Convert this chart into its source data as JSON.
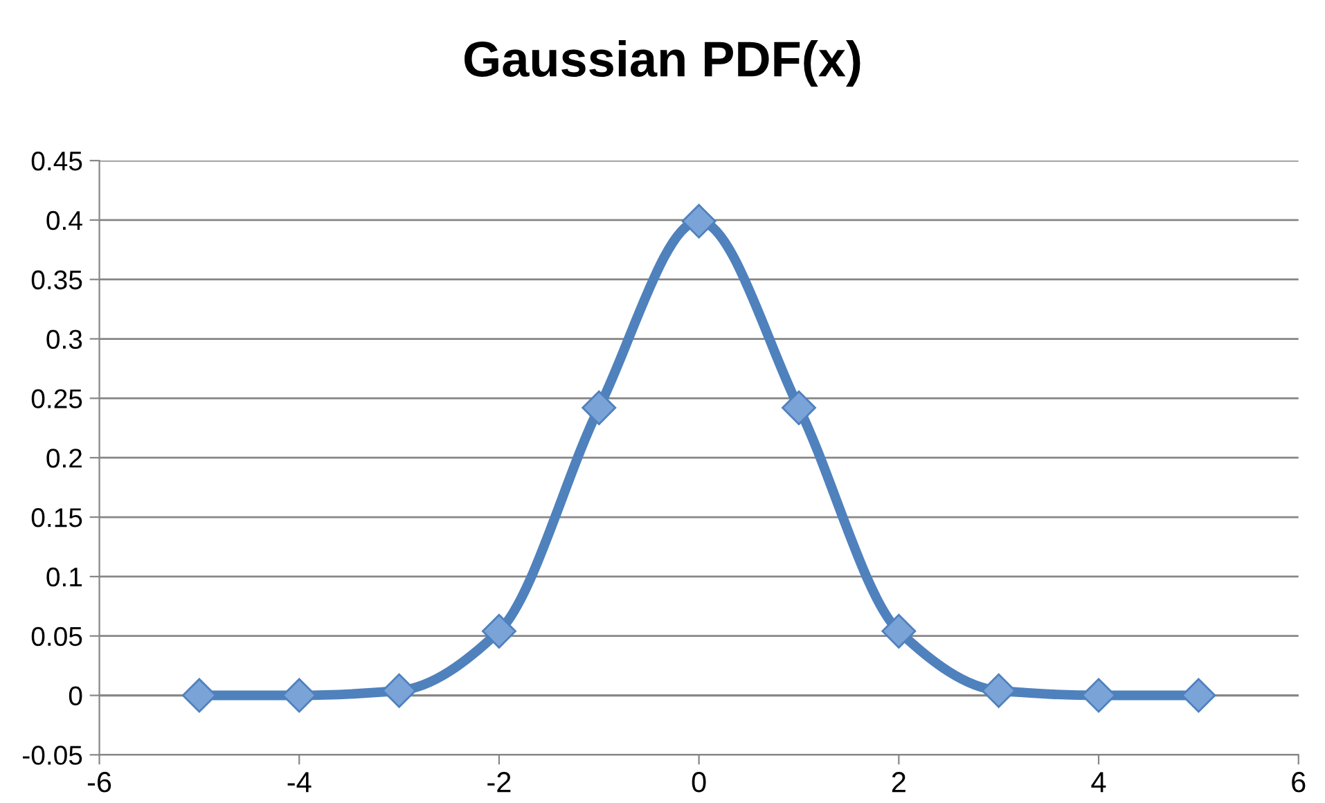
{
  "chart_data": {
    "type": "line",
    "title": "Gaussian PDF(x)",
    "x": [
      -5,
      -4,
      -3,
      -2,
      -1,
      0,
      1,
      2,
      3,
      4,
      5
    ],
    "series": [
      {
        "color": "#4f81bd",
        "values": [
          0,
          0,
          0.004,
          0.054,
          0.242,
          0.399,
          0.242,
          0.054,
          0.004,
          0,
          0
        ]
      }
    ],
    "xlim": [
      -6,
      6
    ],
    "xticks": [
      -6,
      -4,
      -2,
      0,
      2,
      4,
      6
    ],
    "ylim": [
      -0.05,
      0.45
    ],
    "yticks": [
      -0.05,
      0,
      0.05,
      0.1,
      0.15,
      0.2,
      0.25,
      0.3,
      0.35,
      0.4,
      0.45
    ],
    "grid": "y",
    "marker": "diamond",
    "line_style": "solid",
    "legend": false
  }
}
